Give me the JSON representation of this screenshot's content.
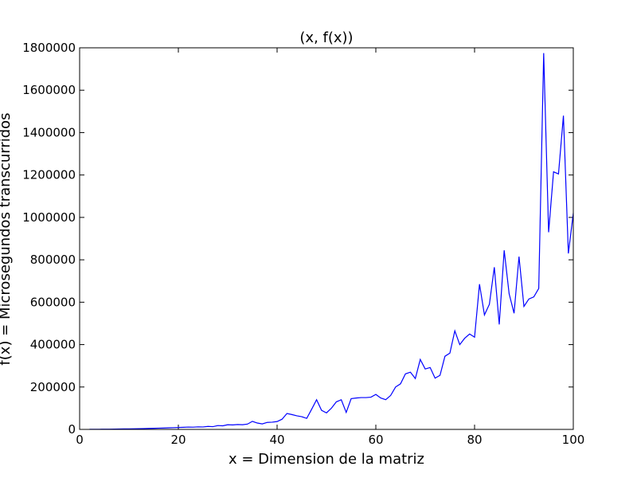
{
  "chart_data": {
    "type": "line",
    "title": "(x, f(x))",
    "xlabel": "x = Dimension de la matriz",
    "ylabel": "f(x) = Microsegundos transcurridos",
    "xlim": [
      0,
      100
    ],
    "ylim": [
      0,
      1800000
    ],
    "xticks": [
      0,
      20,
      40,
      60,
      80,
      100
    ],
    "yticks": [
      0,
      200000,
      400000,
      600000,
      800000,
      1000000,
      1200000,
      1400000,
      1600000,
      1800000
    ],
    "grid": false,
    "line_color": "#0000ff",
    "series": [
      {
        "x": [
          2,
          3,
          4,
          5,
          6,
          7,
          8,
          9,
          10,
          11,
          12,
          13,
          14,
          15,
          16,
          17,
          18,
          19,
          20,
          21,
          22,
          23,
          24,
          25,
          26,
          27,
          28,
          29,
          30,
          31,
          32,
          33,
          34,
          35,
          36,
          37,
          38,
          39,
          40,
          41,
          42,
          43,
          44,
          45,
          46,
          47,
          48,
          49,
          50,
          51,
          52,
          53,
          54,
          55,
          56,
          57,
          58,
          59,
          60,
          61,
          62,
          63,
          64,
          65,
          66,
          67,
          68,
          69,
          70,
          71,
          72,
          73,
          74,
          75,
          76,
          77,
          78,
          79,
          80,
          81,
          82,
          83,
          84,
          85,
          86,
          87,
          88,
          89,
          90,
          91,
          92,
          93,
          94,
          95,
          96,
          97,
          98,
          99,
          100
        ],
        "y": [
          500,
          600,
          800,
          1000,
          1200,
          1500,
          1800,
          2200,
          2600,
          3000,
          3500,
          4000,
          4600,
          5200,
          5900,
          6600,
          7400,
          8200,
          9100,
          10000,
          11000,
          10500,
          12000,
          11500,
          14000,
          13000,
          18000,
          17000,
          22000,
          21000,
          23000,
          22000,
          25000,
          38000,
          30000,
          26000,
          33000,
          34000,
          37000,
          48000,
          75000,
          70000,
          64000,
          60000,
          52000,
          95000,
          140000,
          90000,
          78000,
          100000,
          130000,
          140000,
          80000,
          145000,
          148000,
          150000,
          150000,
          152000,
          165000,
          148000,
          140000,
          160000,
          200000,
          215000,
          262000,
          270000,
          240000,
          330000,
          285000,
          292000,
          242000,
          255000,
          345000,
          360000,
          465000,
          400000,
          430000,
          450000,
          435000,
          685000,
          540000,
          590000,
          765000,
          495000,
          845000,
          640000,
          548000,
          815000,
          580000,
          615000,
          625000,
          665000,
          1775000,
          930000,
          1215000,
          1205000,
          1480000,
          830000,
          1020000
        ]
      }
    ]
  }
}
